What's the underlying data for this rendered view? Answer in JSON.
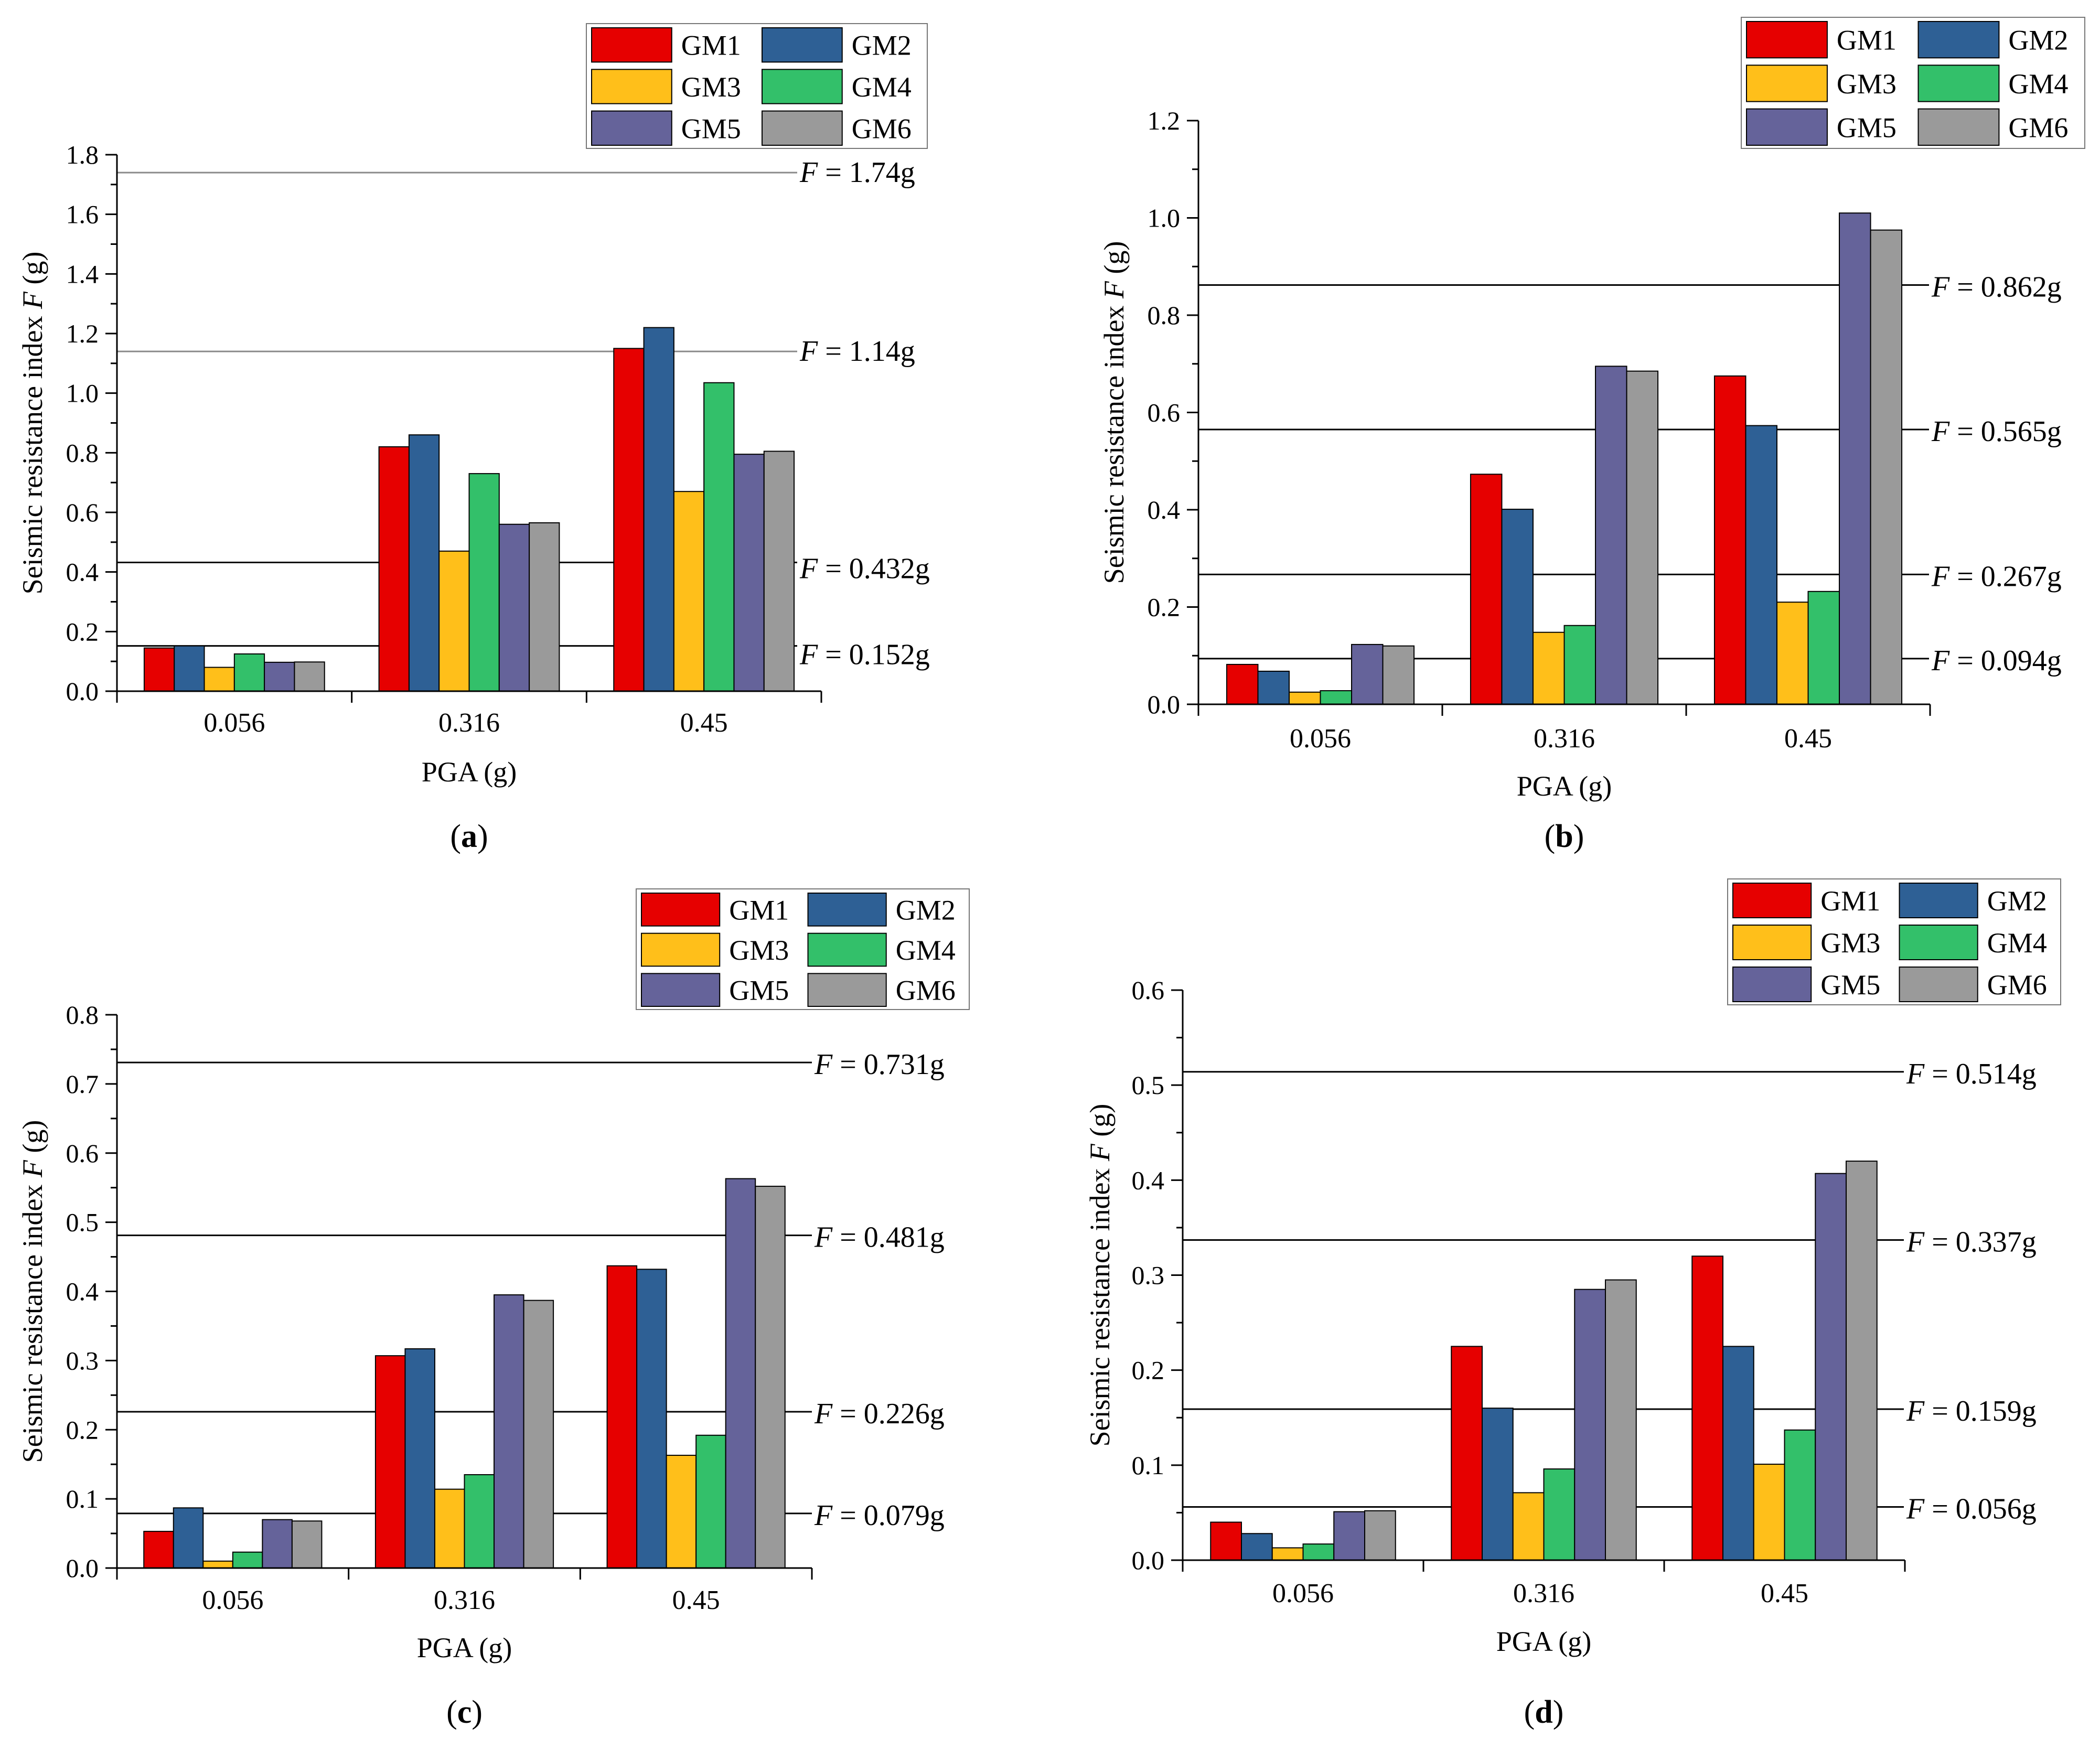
{
  "colors": {
    "GM1": "#e60000",
    "GM2": "#2e6095",
    "GM3": "#ffbf1a",
    "GM4": "#33c06a",
    "GM5": "#65639a",
    "GM6": "#9a9a9a"
  },
  "chart_data": [
    {
      "panel_label": "a",
      "type": "bar",
      "xlabel": "PGA (g)",
      "ylabel_prefix": "Seismic resistance index ",
      "ylabel_var": "F",
      "ylabel_suffix": " (g)",
      "categories": [
        "0.056",
        "0.316",
        "0.45"
      ],
      "ylim": [
        0,
        1.8
      ],
      "yticks": [
        "0.0",
        "0.2",
        "0.4",
        "0.6",
        "0.8",
        "1.0",
        "1.2",
        "1.4",
        "1.6",
        "1.8"
      ],
      "series": [
        {
          "name": "GM1",
          "values": [
            0.145,
            0.82,
            1.15
          ]
        },
        {
          "name": "GM2",
          "values": [
            0.152,
            0.86,
            1.22
          ]
        },
        {
          "name": "GM3",
          "values": [
            0.08,
            0.47,
            0.67
          ]
        },
        {
          "name": "GM4",
          "values": [
            0.125,
            0.73,
            1.035
          ]
        },
        {
          "name": "GM5",
          "values": [
            0.097,
            0.56,
            0.795
          ]
        },
        {
          "name": "GM6",
          "values": [
            0.098,
            0.565,
            0.805
          ]
        }
      ],
      "thresholds": [
        {
          "value": 1.74,
          "var": "F",
          "text": " = 1.74g"
        },
        {
          "value": 1.14,
          "var": "F",
          "text": " = 1.14g"
        },
        {
          "value": 0.432,
          "var": "F",
          "text": " = 0.432g"
        },
        {
          "value": 0.152,
          "var": "F",
          "text": " = 0.152g"
        }
      ]
    },
    {
      "panel_label": "b",
      "type": "bar",
      "xlabel": "PGA (g)",
      "ylabel_prefix": "Seismic resistance index ",
      "ylabel_var": "F",
      "ylabel_suffix": " (g)",
      "categories": [
        "0.056",
        "0.316",
        "0.45"
      ],
      "ylim": [
        0,
        1.2
      ],
      "yticks": [
        "0.0",
        "0.2",
        "0.4",
        "0.6",
        "0.8",
        "1.0",
        "1.2"
      ],
      "series": [
        {
          "name": "GM1",
          "values": [
            0.082,
            0.473,
            0.675
          ]
        },
        {
          "name": "GM2",
          "values": [
            0.068,
            0.401,
            0.573
          ]
        },
        {
          "name": "GM3",
          "values": [
            0.025,
            0.148,
            0.21
          ]
        },
        {
          "name": "GM4",
          "values": [
            0.028,
            0.162,
            0.232
          ]
        },
        {
          "name": "GM5",
          "values": [
            0.123,
            0.695,
            1.01
          ]
        },
        {
          "name": "GM6",
          "values": [
            0.12,
            0.685,
            0.975
          ]
        }
      ],
      "thresholds": [
        {
          "value": 0.862,
          "var": "F",
          "text": " = 0.862g"
        },
        {
          "value": 0.565,
          "var": "F",
          "text": " = 0.565g"
        },
        {
          "value": 0.267,
          "var": "F",
          "text": " = 0.267g"
        },
        {
          "value": 0.094,
          "var": "F",
          "text": " = 0.094g"
        }
      ]
    },
    {
      "panel_label": "c",
      "type": "bar",
      "xlabel": "PGA (g)",
      "ylabel_prefix": "Seismic resistance index ",
      "ylabel_var": "F",
      "ylabel_suffix": " (g)",
      "categories": [
        "0.056",
        "0.316",
        "0.45"
      ],
      "ylim": [
        0,
        0.8
      ],
      "yticks": [
        "0.0",
        "0.1",
        "0.2",
        "0.3",
        "0.4",
        "0.5",
        "0.6",
        "0.7",
        "0.8"
      ],
      "series": [
        {
          "name": "GM1",
          "values": [
            0.053,
            0.307,
            0.437
          ]
        },
        {
          "name": "GM2",
          "values": [
            0.087,
            0.317,
            0.432
          ]
        },
        {
          "name": "GM3",
          "values": [
            0.01,
            0.114,
            0.163
          ]
        },
        {
          "name": "GM4",
          "values": [
            0.023,
            0.135,
            0.192
          ]
        },
        {
          "name": "GM5",
          "values": [
            0.07,
            0.395,
            0.563
          ]
        },
        {
          "name": "GM6",
          "values": [
            0.068,
            0.387,
            0.552
          ]
        }
      ],
      "thresholds": [
        {
          "value": 0.731,
          "var": "F",
          "text": " = 0.731g"
        },
        {
          "value": 0.481,
          "var": "F",
          "text": " = 0.481g"
        },
        {
          "value": 0.226,
          "var": "F",
          "text": " = 0.226g"
        },
        {
          "value": 0.079,
          "var": "F",
          "text": " = 0.079g"
        }
      ]
    },
    {
      "panel_label": "d",
      "type": "bar",
      "xlabel": "PGA (g)",
      "ylabel_prefix": "Seismic resistance index ",
      "ylabel_var": "F",
      "ylabel_suffix": " (g)",
      "categories": [
        "0.056",
        "0.316",
        "0.45"
      ],
      "ylim": [
        0,
        0.6
      ],
      "yticks": [
        "0.0",
        "0.1",
        "0.2",
        "0.3",
        "0.4",
        "0.5",
        "0.6"
      ],
      "series": [
        {
          "name": "GM1",
          "values": [
            0.04,
            0.225,
            0.32
          ]
        },
        {
          "name": "GM2",
          "values": [
            0.028,
            0.16,
            0.225
          ]
        },
        {
          "name": "GM3",
          "values": [
            0.013,
            0.071,
            0.101
          ]
        },
        {
          "name": "GM4",
          "values": [
            0.017,
            0.096,
            0.137
          ]
        },
        {
          "name": "GM5",
          "values": [
            0.051,
            0.285,
            0.407
          ]
        },
        {
          "name": "GM6",
          "values": [
            0.052,
            0.295,
            0.42
          ]
        }
      ],
      "thresholds": [
        {
          "value": 0.514,
          "var": "F",
          "text": " = 0.514g"
        },
        {
          "value": 0.337,
          "var": "F",
          "text": " = 0.337g"
        },
        {
          "value": 0.159,
          "var": "F",
          "text": " = 0.159g"
        },
        {
          "value": 0.056,
          "var": "F",
          "text": " = 0.056g"
        }
      ]
    }
  ]
}
